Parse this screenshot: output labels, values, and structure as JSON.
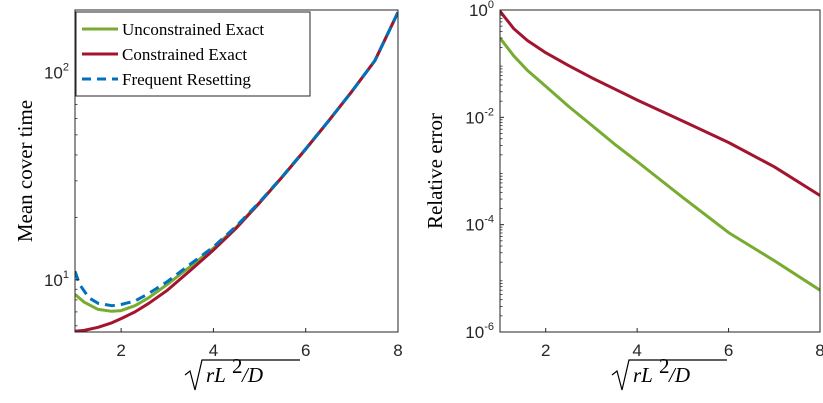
{
  "chart_data": [
    {
      "type": "line",
      "ylabel": "Mean cover time",
      "xlabel": "sqrt(rL^2/D)",
      "xlim": [
        1,
        8
      ],
      "ylim": [
        5.6,
        200
      ],
      "yscale": "log",
      "x_ticks": [
        "2",
        "4",
        "6",
        "8"
      ],
      "y_ticks": [
        {
          "value": 10,
          "base": "10",
          "exp": "1"
        },
        {
          "value": 100,
          "base": "10",
          "exp": "2"
        }
      ],
      "legend_position": "top-left",
      "series": [
        {
          "name": "Unconstrained Exact",
          "color": "#77ac30",
          "style": "solid",
          "x": [
            1,
            1.2,
            1.5,
            1.8,
            2.0,
            2.3,
            2.6,
            3.0,
            3.5,
            4.0,
            4.5,
            5.0,
            5.5,
            6.0,
            6.5,
            7.0,
            7.5,
            8.0
          ],
          "y": [
            8.5,
            7.8,
            7.2,
            7.05,
            7.1,
            7.5,
            8.2,
            9.5,
            11.6,
            14.2,
            18.0,
            23.6,
            31.5,
            42.7,
            58.5,
            81.0,
            114.0,
            195.0
          ]
        },
        {
          "name": "Constrained Exact",
          "color": "#a2142f",
          "style": "solid",
          "x": [
            1,
            1.2,
            1.5,
            1.8,
            2.0,
            2.3,
            2.6,
            3.0,
            3.5,
            4.0,
            4.5,
            5.0,
            5.5,
            6.0,
            6.5,
            7.0,
            7.5,
            8.0
          ],
          "y": [
            5.65,
            5.7,
            5.9,
            6.2,
            6.5,
            7.0,
            7.7,
            8.9,
            11.1,
            13.9,
            17.8,
            23.5,
            31.5,
            42.7,
            58.5,
            81.0,
            114.0,
            195.0
          ]
        },
        {
          "name": "Frequent Resetting",
          "color": "#0072bd",
          "style": "dashed",
          "x": [
            1,
            1.1,
            1.3,
            1.5,
            1.8,
            2.0,
            2.3,
            2.6,
            3.0,
            3.5,
            4.0,
            4.5,
            5.0,
            5.5,
            6.0,
            6.5,
            7.0,
            7.5,
            8.0
          ],
          "y": [
            11.0,
            9.5,
            8.2,
            7.7,
            7.5,
            7.6,
            7.9,
            8.6,
            9.8,
            11.9,
            14.4,
            18.2,
            23.7,
            31.6,
            42.8,
            58.6,
            81.0,
            114.0,
            195.0
          ]
        }
      ]
    },
    {
      "type": "line",
      "ylabel": "Relative error",
      "xlabel": "sqrt(rL^2/D)",
      "xlim": [
        1,
        8
      ],
      "ylim": [
        1e-06,
        1
      ],
      "yscale": "log",
      "x_ticks": [
        "2",
        "4",
        "6",
        "8"
      ],
      "y_ticks": [
        {
          "value": 1,
          "base": "10",
          "exp": "0"
        },
        {
          "value": 0.01,
          "base": "10",
          "exp": "-2"
        },
        {
          "value": 0.0001,
          "base": "10",
          "exp": "-4"
        },
        {
          "value": 1e-06,
          "base": "10",
          "exp": "-6"
        }
      ],
      "series": [
        {
          "color": "#a2142f",
          "style": "solid",
          "x": [
            1,
            1.3,
            1.6,
            2.0,
            2.5,
            3.0,
            3.5,
            4.0,
            5.0,
            6.0,
            7.0,
            8.0
          ],
          "y": [
            0.95,
            0.45,
            0.27,
            0.16,
            0.092,
            0.055,
            0.034,
            0.021,
            0.0085,
            0.0034,
            0.0012,
            0.00035
          ]
        },
        {
          "color": "#77ac30",
          "style": "solid",
          "x": [
            1,
            1.3,
            1.6,
            2.0,
            2.5,
            3.0,
            3.5,
            4.0,
            5.0,
            6.0,
            7.0,
            8.0
          ],
          "y": [
            0.3,
            0.14,
            0.075,
            0.038,
            0.016,
            0.0072,
            0.0032,
            0.0015,
            0.00032,
            7.13e-05,
            2.13e-05,
            6e-06
          ]
        }
      ]
    }
  ]
}
